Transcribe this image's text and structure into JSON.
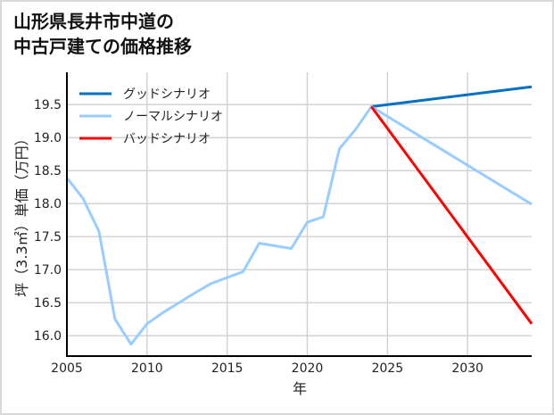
{
  "title": {
    "line1": "山形県長井市中道の",
    "line2": "中古戸建ての価格推移"
  },
  "colors": {
    "good": "#0070C0",
    "normal": "#99CCFF",
    "bad": "#FF0000",
    "grid": "#d3d3d3",
    "axis": "#000000",
    "border": "#d9d9d9"
  },
  "chart_data": {
    "type": "line",
    "title": "山形県長井市中道の中古戸建ての価格推移",
    "xlabel": "年",
    "ylabel": "坪（3.3㎡）単価（万円）",
    "xlim": [
      2005,
      2034
    ],
    "ylim": [
      15.69,
      19.99
    ],
    "xticks": [
      2005,
      2010,
      2015,
      2020,
      2025,
      2030
    ],
    "yticks": [
      16.0,
      16.5,
      17.0,
      17.5,
      18.0,
      18.5,
      19.0,
      19.5
    ],
    "ytick_labels": [
      "16.0",
      "16.5",
      "17.0",
      "17.5",
      "18.0",
      "18.5",
      "19.0",
      "19.5"
    ],
    "grid": true,
    "legend_position": "upper left",
    "series": [
      {
        "name": "グッドシナリオ",
        "color": "#0070C0",
        "x": [
          2024,
          2034
        ],
        "values": [
          19.47,
          19.77
        ]
      },
      {
        "name": "ノーマルシナリオ",
        "color": "#99CCFF",
        "x": [
          2005,
          2006,
          2007,
          2008,
          2009,
          2010,
          2011,
          2012,
          2013,
          2014,
          2015,
          2016,
          2017,
          2018,
          2019,
          2020,
          2021,
          2022,
          2023,
          2024,
          2034
        ],
        "values": [
          18.39,
          18.08,
          17.58,
          16.25,
          15.87,
          16.18,
          16.35,
          16.5,
          16.65,
          16.79,
          16.88,
          16.97,
          17.4,
          17.36,
          17.32,
          17.72,
          17.8,
          18.83,
          19.12,
          19.47,
          17.99
        ]
      },
      {
        "name": "バッドシナリオ",
        "color": "#FF0000",
        "x": [
          2024,
          2034
        ],
        "values": [
          19.47,
          16.18
        ]
      }
    ]
  }
}
